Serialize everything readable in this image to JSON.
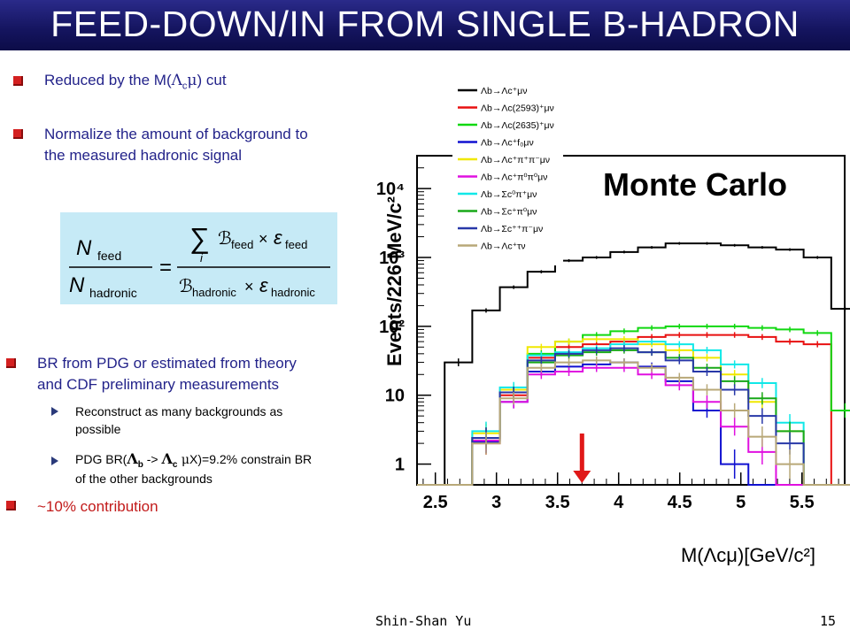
{
  "title": "FEED-DOWN/IN FROM SINGLE B-HADRON",
  "bullets": {
    "b1": {
      "pre": "Reduced by the M(",
      "lam": "Λ",
      "sub": "c",
      "mu": "μ",
      "post": ") cut"
    },
    "b2_line1": "Normalize the amount of background to",
    "b2_line2": "the measured hadronic signal",
    "b3_line1": "BR from PDG or estimated from theory",
    "b3_line2": "and CDF preliminary measurements",
    "s1_line1": "Reconstruct as many backgrounds as",
    "s1_line2": "possible",
    "s2": {
      "pre": "PDG BR(",
      "lam1": "Λ",
      "sub1": "b",
      "arrow": " -> ",
      "lam2": "Λ",
      "sub2": "c",
      "mu": " μ",
      "post": "X)=9.2% constrain BR",
      "line2": "of the other backgrounds"
    },
    "b4": "~10% contribution"
  },
  "formula": {
    "n_feed": "N",
    "feed": "feed",
    "n_had": "N",
    "hadronic": "hadronic",
    "equals": "=",
    "sum": "∑",
    "sum_idx": "i",
    "b": "ℬ",
    "times": "×",
    "eps": "ε"
  },
  "footer": {
    "author": "Shin-Shan Yu",
    "page": "15"
  },
  "colors": {
    "title_bg": "#14145e",
    "bullet_text": "#23238a",
    "bullet_red": "#d42020",
    "formula_bg": "#c6eaf6",
    "arrow": "#e01818"
  },
  "chart_data": {
    "type": "line",
    "xlabel": "M(Λcμ)[GeV/c²]",
    "ylabel": "Events/226 MeV/c²",
    "annotation": "Monte Carlo",
    "x_ticks": [
      "2.5",
      "3",
      "3.5",
      "4",
      "4.5",
      "5",
      "5.5"
    ],
    "y_ticks": [
      "1",
      "10",
      "10²",
      "10³",
      "10⁴"
    ],
    "y_scale": "log",
    "x_range": [
      2.35,
      5.85
    ],
    "y_range": [
      0.5,
      30000
    ],
    "cut_arrow_x": 3.7,
    "legend_position": "top-left",
    "series": [
      {
        "name": "Λb→Λc⁺μν",
        "color": "#000000",
        "values": [
          0.3,
          30,
          170,
          370,
          620,
          900,
          1000,
          1200,
          1400,
          1600,
          1600,
          1500,
          1400,
          1300,
          1000,
          180,
          0.3,
          0.3,
          0.3
        ]
      },
      {
        "name": "Λb→Λc(2593)⁺μν",
        "color": "#e81010",
        "values": [
          0.3,
          0.3,
          2.0,
          10,
          35,
          50,
          55,
          60,
          70,
          75,
          75,
          75,
          70,
          60,
          55,
          0.3,
          0.3,
          0.3,
          0.3
        ]
      },
      {
        "name": "Λb→Λc(2635)⁺μν",
        "color": "#10d810",
        "values": [
          0.3,
          0.3,
          2.2,
          11,
          40,
          60,
          75,
          85,
          95,
          100,
          100,
          100,
          95,
          90,
          80,
          6,
          0.3,
          0.3,
          0.3
        ]
      },
      {
        "name": "Λb→Λc⁺f₀μν",
        "color": "#1010d0",
        "values": [
          0.3,
          0.3,
          2.1,
          8,
          22,
          26,
          28,
          30,
          26,
          16,
          6,
          1,
          0.3,
          0.3,
          0.3,
          0.3,
          0.3,
          0.3,
          0.3
        ]
      },
      {
        "name": "Λb→Λc⁺π⁺π⁻μν",
        "color": "#f0e800",
        "values": [
          0.3,
          0.3,
          2.8,
          12,
          50,
          60,
          65,
          65,
          55,
          45,
          35,
          20,
          8,
          3,
          0.3,
          0.3,
          0.3,
          0.3,
          0.3
        ]
      },
      {
        "name": "Λb→Λc⁺π⁰π⁰μν",
        "color": "#e010e0",
        "values": [
          0.3,
          0.3,
          2.2,
          8,
          20,
          22,
          25,
          25,
          20,
          14,
          8,
          3.5,
          1.5,
          0.5,
          0.3,
          0.3,
          0.3,
          0.3,
          0.3
        ]
      },
      {
        "name": "Λb→Σc⁰π⁺μν",
        "color": "#10e8e8",
        "values": [
          0.3,
          0.3,
          3.0,
          13,
          38,
          42,
          48,
          55,
          60,
          55,
          45,
          28,
          15,
          4,
          0.3,
          0.3,
          0.3,
          0.3,
          0.3
        ]
      },
      {
        "name": "Λb→Σc⁺π⁰μν",
        "color": "#18a818",
        "values": [
          0.3,
          0.3,
          2.4,
          11,
          30,
          38,
          42,
          45,
          42,
          35,
          25,
          16,
          9,
          3,
          0.3,
          0.3,
          0.3,
          0.3,
          0.3
        ]
      },
      {
        "name": "Λb→Σc⁺⁺π⁻μν",
        "color": "#2838a8",
        "values": [
          0.3,
          0.3,
          2.4,
          11,
          32,
          40,
          45,
          48,
          42,
          32,
          22,
          12,
          5,
          2,
          0.3,
          0.3,
          0.3,
          0.3,
          0.3
        ]
      },
      {
        "name": "Λb→Λc⁺τν",
        "color": "#b8a878",
        "values": [
          0.3,
          0.3,
          2.0,
          9,
          25,
          30,
          32,
          30,
          25,
          18,
          12,
          6,
          2.5,
          1,
          0.3,
          0.3,
          0.3,
          0.3,
          0.3
        ]
      }
    ]
  }
}
